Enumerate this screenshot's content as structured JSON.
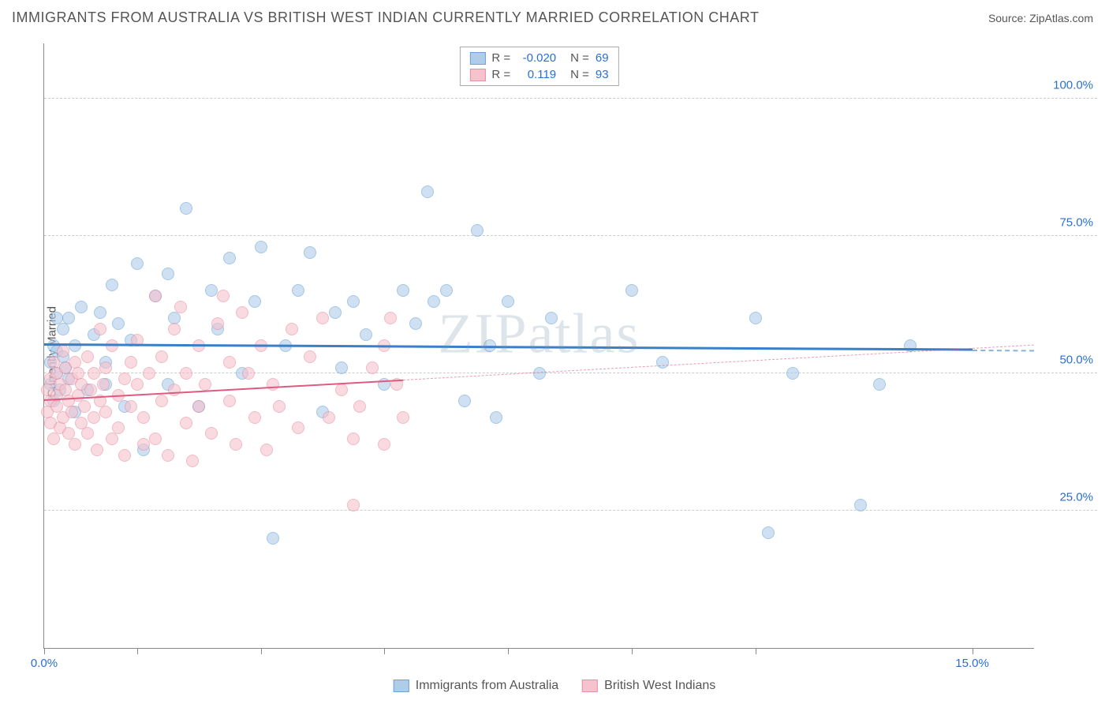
{
  "title": "IMMIGRANTS FROM AUSTRALIA VS BRITISH WEST INDIAN CURRENTLY MARRIED CORRELATION CHART",
  "source": "Source: ZipAtlas.com",
  "watermark": "ZIPatlas",
  "chart": {
    "type": "scatter",
    "ylabel": "Currently Married",
    "xlim": [
      0,
      16
    ],
    "ylim": [
      0,
      110
    ],
    "xticks": [
      0,
      1.5,
      3.5,
      5.5,
      7.5,
      9.5,
      11.5,
      15
    ],
    "xtick_labels": {
      "0": "0.0%",
      "15": "15.0%"
    },
    "yticks": [
      25,
      50,
      75,
      100
    ],
    "ytick_labels": [
      "25.0%",
      "50.0%",
      "75.0%",
      "100.0%"
    ],
    "grid_color": "#cccccc",
    "background_color": "#ffffff",
    "series": [
      {
        "name": "Immigrants from Australia",
        "color_fill": "#aecde8",
        "color_stroke": "#6aa3d8",
        "stats": {
          "R": "-0.020",
          "N": "69"
        },
        "trendline": {
          "y1": 55,
          "y2": 54,
          "color": "#3a7fc9",
          "width": 3,
          "data_extent": 15
        },
        "points": [
          [
            0.1,
            48
          ],
          [
            0.1,
            52
          ],
          [
            0.15,
            45
          ],
          [
            0.15,
            55
          ],
          [
            0.2,
            54
          ],
          [
            0.2,
            50
          ],
          [
            0.25,
            47
          ],
          [
            0.3,
            58
          ],
          [
            0.3,
            53
          ],
          [
            0.35,
            51
          ],
          [
            0.4,
            49
          ],
          [
            0.4,
            60
          ],
          [
            0.5,
            55
          ],
          [
            0.6,
            62
          ],
          [
            0.7,
            47
          ],
          [
            0.8,
            57
          ],
          [
            0.9,
            61
          ],
          [
            1.0,
            52
          ],
          [
            1.1,
            66
          ],
          [
            1.2,
            59
          ],
          [
            1.3,
            44
          ],
          [
            1.4,
            56
          ],
          [
            1.5,
            70
          ],
          [
            1.6,
            36
          ],
          [
            1.8,
            64
          ],
          [
            2.0,
            48
          ],
          [
            2.1,
            60
          ],
          [
            2.3,
            80
          ],
          [
            2.5,
            44
          ],
          [
            2.7,
            65
          ],
          [
            2.8,
            58
          ],
          [
            3.0,
            71
          ],
          [
            3.2,
            50
          ],
          [
            3.4,
            63
          ],
          [
            3.5,
            73
          ],
          [
            3.7,
            20
          ],
          [
            3.9,
            55
          ],
          [
            4.1,
            65
          ],
          [
            4.3,
            72
          ],
          [
            4.5,
            43
          ],
          [
            4.7,
            61
          ],
          [
            4.8,
            51
          ],
          [
            5.0,
            63
          ],
          [
            5.2,
            57
          ],
          [
            5.5,
            48
          ],
          [
            5.8,
            65
          ],
          [
            6.0,
            59
          ],
          [
            6.2,
            83
          ],
          [
            6.3,
            63
          ],
          [
            6.5,
            65
          ],
          [
            6.8,
            45
          ],
          [
            7.0,
            76
          ],
          [
            7.2,
            55
          ],
          [
            7.3,
            42
          ],
          [
            7.5,
            63
          ],
          [
            8.0,
            50
          ],
          [
            8.2,
            60
          ],
          [
            9.5,
            65
          ],
          [
            10.0,
            52
          ],
          [
            11.5,
            60
          ],
          [
            11.7,
            21
          ],
          [
            12.1,
            50
          ],
          [
            13.2,
            26
          ],
          [
            13.5,
            48
          ],
          [
            14.0,
            55
          ],
          [
            0.2,
            60
          ],
          [
            1.0,
            48
          ],
          [
            2.0,
            68
          ],
          [
            0.5,
            43
          ]
        ]
      },
      {
        "name": "British West Indians",
        "color_fill": "#f5c2cd",
        "color_stroke": "#e78fa3",
        "stats": {
          "R": "0.119",
          "N": "93"
        },
        "trendline": {
          "y1": 45,
          "y2": 55,
          "color": "#e05a80",
          "width": 2,
          "data_extent": 5.8
        },
        "points": [
          [
            0.05,
            43
          ],
          [
            0.05,
            47
          ],
          [
            0.1,
            41
          ],
          [
            0.1,
            49
          ],
          [
            0.1,
            45
          ],
          [
            0.15,
            52
          ],
          [
            0.15,
            38
          ],
          [
            0.2,
            46
          ],
          [
            0.2,
            50
          ],
          [
            0.2,
            44
          ],
          [
            0.25,
            48
          ],
          [
            0.25,
            40
          ],
          [
            0.3,
            54
          ],
          [
            0.3,
            42
          ],
          [
            0.35,
            47
          ],
          [
            0.35,
            51
          ],
          [
            0.4,
            39
          ],
          [
            0.4,
            45
          ],
          [
            0.45,
            49
          ],
          [
            0.45,
            43
          ],
          [
            0.5,
            37
          ],
          [
            0.5,
            52
          ],
          [
            0.55,
            46
          ],
          [
            0.55,
            50
          ],
          [
            0.6,
            41
          ],
          [
            0.6,
            48
          ],
          [
            0.65,
            44
          ],
          [
            0.7,
            53
          ],
          [
            0.7,
            39
          ],
          [
            0.75,
            47
          ],
          [
            0.8,
            42
          ],
          [
            0.8,
            50
          ],
          [
            0.85,
            36
          ],
          [
            0.9,
            45
          ],
          [
            0.9,
            58
          ],
          [
            0.95,
            48
          ],
          [
            1.0,
            43
          ],
          [
            1.0,
            51
          ],
          [
            1.1,
            38
          ],
          [
            1.1,
            55
          ],
          [
            1.2,
            46
          ],
          [
            1.2,
            40
          ],
          [
            1.3,
            49
          ],
          [
            1.3,
            35
          ],
          [
            1.4,
            52
          ],
          [
            1.4,
            44
          ],
          [
            1.5,
            48
          ],
          [
            1.5,
            56
          ],
          [
            1.6,
            37
          ],
          [
            1.6,
            42
          ],
          [
            1.7,
            50
          ],
          [
            1.8,
            64
          ],
          [
            1.8,
            38
          ],
          [
            1.9,
            45
          ],
          [
            1.9,
            53
          ],
          [
            2.0,
            35
          ],
          [
            2.1,
            47
          ],
          [
            2.1,
            58
          ],
          [
            2.2,
            62
          ],
          [
            2.3,
            41
          ],
          [
            2.3,
            50
          ],
          [
            2.4,
            34
          ],
          [
            2.5,
            44
          ],
          [
            2.5,
            55
          ],
          [
            2.6,
            48
          ],
          [
            2.7,
            39
          ],
          [
            2.8,
            59
          ],
          [
            2.9,
            64
          ],
          [
            3.0,
            45
          ],
          [
            3.0,
            52
          ],
          [
            3.1,
            37
          ],
          [
            3.2,
            61
          ],
          [
            3.3,
            50
          ],
          [
            3.4,
            42
          ],
          [
            3.5,
            55
          ],
          [
            3.6,
            36
          ],
          [
            3.7,
            48
          ],
          [
            3.8,
            44
          ],
          [
            4.0,
            58
          ],
          [
            4.1,
            40
          ],
          [
            4.3,
            53
          ],
          [
            4.5,
            60
          ],
          [
            4.6,
            42
          ],
          [
            4.8,
            47
          ],
          [
            5.0,
            26
          ],
          [
            5.0,
            38
          ],
          [
            5.1,
            44
          ],
          [
            5.3,
            51
          ],
          [
            5.5,
            37
          ],
          [
            5.5,
            55
          ],
          [
            5.6,
            60
          ],
          [
            5.7,
            48
          ],
          [
            5.8,
            42
          ]
        ]
      }
    ]
  },
  "legend_bottom": [
    {
      "label": "Immigrants from Australia",
      "fill": "#aecde8",
      "stroke": "#6aa3d8"
    },
    {
      "label": "British West Indians",
      "fill": "#f5c2cd",
      "stroke": "#e78fa3"
    }
  ]
}
